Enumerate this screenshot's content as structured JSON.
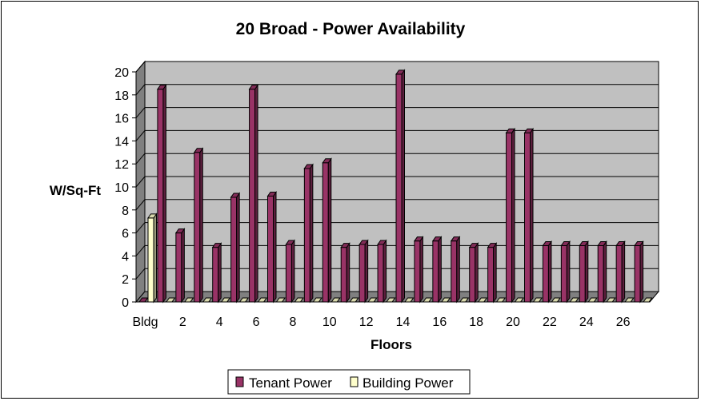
{
  "chart_data": {
    "type": "bar",
    "title": "20 Broad - Power Availability",
    "xlabel": "Floors",
    "ylabel": "W/Sq-Ft",
    "ylim": [
      0,
      20
    ],
    "yticks": [
      0,
      2,
      4,
      6,
      8,
      10,
      12,
      14,
      16,
      18,
      20
    ],
    "categories": [
      "Bldg",
      "1",
      "2",
      "3",
      "4",
      "5",
      "6",
      "7",
      "8",
      "9",
      "10",
      "11",
      "12",
      "13",
      "14",
      "15",
      "16",
      "17",
      "18",
      "19",
      "20",
      "21",
      "22",
      "23",
      "24",
      "25",
      "26",
      "27"
    ],
    "x_tick_labels": [
      "Bldg",
      "2",
      "4",
      "6",
      "8",
      "10",
      "12",
      "14",
      "16",
      "18",
      "20",
      "22",
      "24",
      "26"
    ],
    "series": [
      {
        "name": "Tenant Power",
        "color": "#993366",
        "values": [
          0,
          18.5,
          6,
          13,
          4.75,
          9.1,
          18.5,
          9.2,
          5,
          11.6,
          12.1,
          4.75,
          5,
          5,
          19.8,
          5.3,
          5.3,
          5.3,
          4.75,
          4.75,
          14.7,
          14.7,
          4.9,
          4.9,
          4.9,
          4.9,
          4.9,
          4.9
        ]
      },
      {
        "name": "Building Power",
        "color": "#FFFFCC",
        "values": [
          7.3,
          0,
          0,
          0,
          0,
          0,
          0,
          0,
          0,
          0,
          0,
          0,
          0,
          0,
          0,
          0,
          0,
          0,
          0,
          0,
          0,
          0,
          0,
          0,
          0,
          0,
          0,
          0
        ]
      }
    ],
    "wall_color": "#C0C0C0",
    "floor_color": "#808080",
    "grid": true,
    "legend_position": "bottom-center"
  }
}
